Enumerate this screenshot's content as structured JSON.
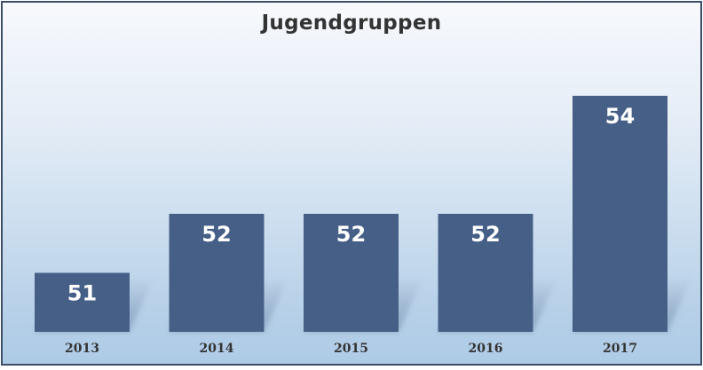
{
  "chart_data": {
    "type": "bar",
    "title": "Jugendgruppen",
    "categories": [
      "2013",
      "2014",
      "2015",
      "2016",
      "2017"
    ],
    "values": [
      51,
      52,
      52,
      52,
      54
    ],
    "data_labels": [
      "51",
      "52",
      "52",
      "52",
      "54"
    ],
    "ylim": [
      50,
      54.3
    ],
    "xlabel": "",
    "ylabel": "",
    "grid": false,
    "legend": "none",
    "bar_color": "#465f87"
  }
}
